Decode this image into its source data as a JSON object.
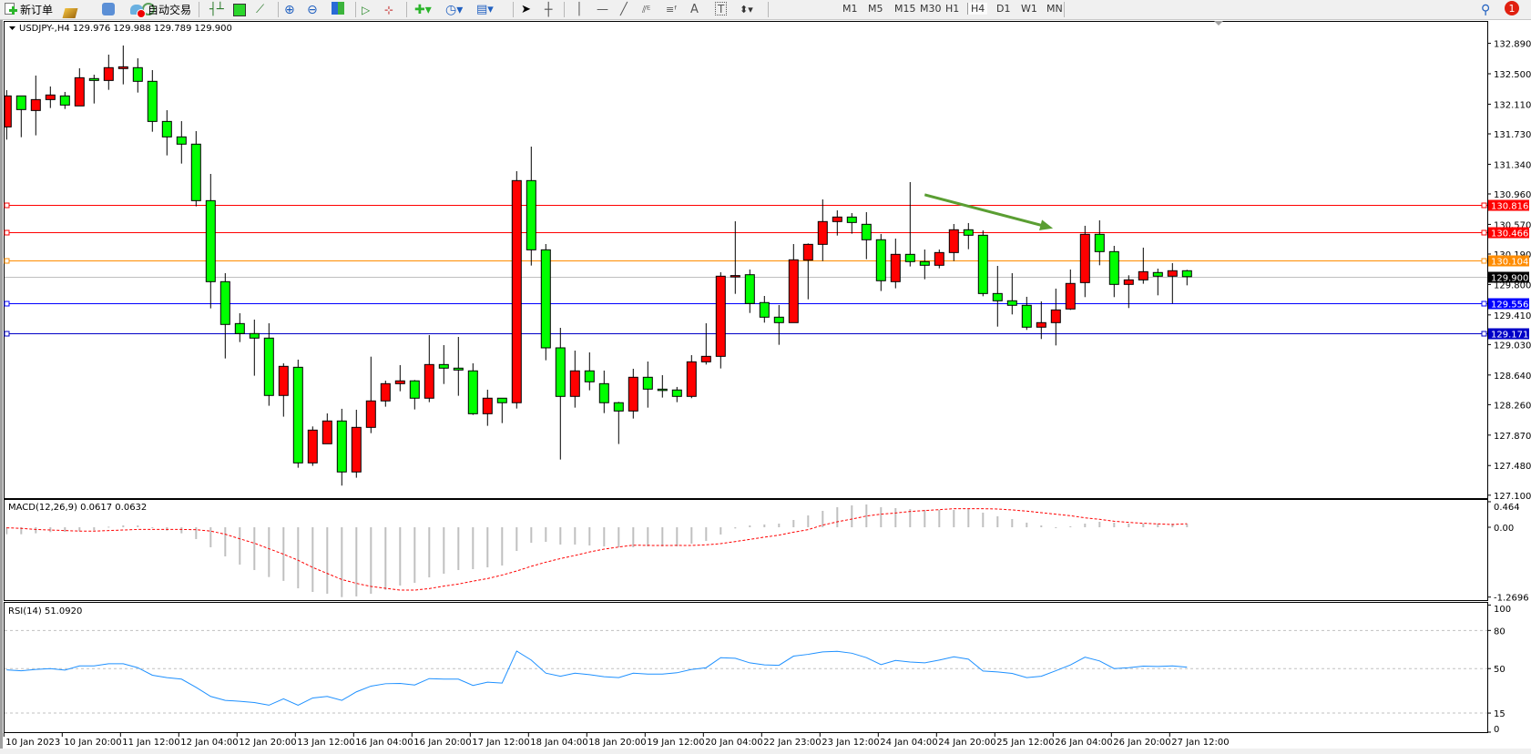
{
  "toolbar": {
    "new_order_label": "新订单",
    "auto_trading_label": "自动交易",
    "timeframes": [
      "M1",
      "M5",
      "M15",
      "M30",
      "H1",
      "H4",
      "D1",
      "W1",
      "MN"
    ],
    "active_timeframe": "H4",
    "notification_count": "1",
    "icons": [
      "new-order-icon",
      "history-icon",
      "market-watch-icon",
      "signals-icon",
      "auto-trading-icon",
      "bar-chart-icon",
      "candlestick-icon",
      "line-chart-icon",
      "zoom-in-icon",
      "zoom-out-icon",
      "tile-windows-icon",
      "autoscroll-icon",
      "chart-shift-icon",
      "new-indicator-icon",
      "periods-clock-icon",
      "templates-icon",
      "cursor-icon",
      "crosshair-icon",
      "vertical-line-icon",
      "horizontal-line-icon",
      "trendline-icon",
      "equidistant-channel-icon",
      "fibonacci-icon",
      "text-icon",
      "text-label-icon",
      "arrows-icon",
      "search-icon",
      "notifications-icon"
    ]
  },
  "chart": {
    "header": "USDJPY-,H4  129.976 129.988 129.789 129.900",
    "colors": {
      "bull": "#ff0000",
      "bear": "#00ff00",
      "outline": "#000000",
      "arrow": "#5a9e32"
    }
  },
  "chart_data": [
    {
      "type": "candlestick",
      "symbol": "USDJPY-",
      "timeframe": "H4",
      "ylim": [
        127.051,
        133.165
      ],
      "y_ticks": [
        "132.890",
        "132.500",
        "132.110",
        "131.730",
        "131.340",
        "130.960",
        "130.570",
        "130.190",
        "129.800",
        "129.410",
        "129.030",
        "128.640",
        "128.260",
        "127.870",
        "127.480",
        "127.100"
      ],
      "x_tick_labels": [
        "10 Jan 2023",
        "10 Jan 20:00",
        "11 Jan 12:00",
        "12 Jan 04:00",
        "12 Jan 20:00",
        "13 Jan 12:00",
        "16 Jan 04:00",
        "16 Jan 20:00",
        "17 Jan 12:00",
        "18 Jan 04:00",
        "18 Jan 20:00",
        "19 Jan 12:00",
        "20 Jan 04:00",
        "22 Jan 23:00",
        "23 Jan 12:00",
        "24 Jan 04:00",
        "24 Jan 20:00",
        "25 Jan 12:00",
        "26 Jan 04:00",
        "26 Jan 20:00",
        "27 Jan 12:00"
      ],
      "ohlc": [
        [
          131.819,
          132.29,
          131.656,
          132.216
        ],
        [
          132.216,
          132.216,
          131.687,
          132.041
        ],
        [
          132.029,
          132.477,
          131.711,
          132.169
        ],
        [
          132.169,
          132.337,
          132.061,
          132.228
        ],
        [
          132.216,
          132.267,
          132.049,
          132.099
        ],
        [
          132.088,
          132.57,
          132.088,
          132.449
        ],
        [
          132.438,
          132.488,
          132.119,
          132.414
        ],
        [
          132.414,
          132.745,
          132.294,
          132.578
        ],
        [
          132.566,
          132.862,
          132.364,
          132.589
        ],
        [
          132.578,
          132.698,
          132.259,
          132.403
        ],
        [
          132.403,
          132.547,
          131.757,
          131.889
        ],
        [
          131.889,
          132.033,
          131.454,
          131.691
        ],
        [
          131.691,
          131.893,
          131.349,
          131.598
        ],
        [
          131.598,
          131.765,
          130.801,
          130.874
        ],
        [
          130.874,
          131.217,
          129.494,
          129.836
        ],
        [
          129.836,
          129.945,
          128.852,
          129.288
        ],
        [
          129.299,
          129.432,
          129.062,
          129.171
        ],
        [
          129.171,
          129.35,
          128.631,
          129.113
        ],
        [
          129.113,
          129.303,
          128.246,
          128.378
        ],
        [
          128.378,
          128.79,
          128.106,
          128.751
        ],
        [
          128.739,
          128.837,
          127.452,
          127.514
        ],
        [
          127.514,
          127.981,
          127.476,
          127.934
        ],
        [
          127.759,
          128.148,
          127.759,
          128.051
        ],
        [
          128.051,
          128.207,
          127.223,
          127.398
        ],
        [
          127.398,
          128.195,
          127.324,
          127.969
        ],
        [
          127.969,
          128.875,
          127.895,
          128.308
        ],
        [
          128.308,
          128.568,
          128.234,
          128.529
        ],
        [
          128.529,
          128.767,
          128.432,
          128.565
        ],
        [
          128.565,
          128.576,
          128.199,
          128.343
        ],
        [
          128.343,
          129.152,
          128.292,
          128.774
        ],
        [
          128.774,
          129.023,
          128.525,
          128.728
        ],
        [
          128.728,
          129.128,
          128.374,
          128.704
        ],
        [
          128.693,
          128.79,
          128.129,
          128.144
        ],
        [
          128.144,
          128.452,
          127.989,
          128.343
        ],
        [
          128.343,
          128.343,
          128.024,
          128.285
        ],
        [
          128.285,
          131.252,
          128.211,
          131.131
        ],
        [
          131.131,
          131.567,
          130.042,
          130.244
        ],
        [
          130.244,
          130.318,
          128.829,
          128.988
        ],
        [
          128.988,
          129.245,
          127.557,
          128.366
        ],
        [
          128.366,
          128.953,
          128.222,
          128.693
        ],
        [
          128.693,
          128.93,
          128.444,
          128.553
        ],
        [
          128.529,
          128.697,
          128.152,
          128.285
        ],
        [
          128.285,
          128.296,
          127.756,
          128.179
        ],
        [
          128.179,
          128.72,
          128.082,
          128.611
        ],
        [
          128.611,
          128.813,
          128.222,
          128.459
        ],
        [
          128.459,
          128.638,
          128.351,
          128.452
        ],
        [
          128.448,
          128.487,
          128.292,
          128.366
        ],
        [
          128.366,
          128.895,
          128.343,
          128.809
        ],
        [
          128.809,
          129.303,
          128.774,
          128.879
        ],
        [
          128.879,
          129.957,
          128.724,
          129.906
        ],
        [
          129.906,
          130.61,
          129.68,
          129.914
        ],
        [
          129.925,
          129.992,
          129.435,
          129.556
        ],
        [
          129.568,
          129.653,
          129.311,
          129.381
        ],
        [
          129.381,
          129.537,
          129.027,
          129.311
        ],
        [
          129.311,
          130.318,
          129.311,
          130.116
        ],
        [
          130.112,
          130.326,
          129.61,
          130.314
        ],
        [
          130.314,
          130.89,
          130.1,
          130.606
        ],
        [
          130.606,
          130.75,
          130.427,
          130.664
        ],
        [
          130.664,
          130.715,
          130.451,
          130.594
        ],
        [
          130.571,
          130.727,
          130.124,
          130.373
        ],
        [
          130.373,
          130.447,
          129.716,
          129.848
        ],
        [
          129.836,
          130.388,
          129.751,
          130.186
        ],
        [
          130.186,
          131.112,
          130.031,
          130.093
        ],
        [
          130.093,
          130.248,
          129.867,
          130.046
        ],
        [
          130.046,
          130.248,
          130.007,
          130.209
        ],
        [
          130.209,
          130.575,
          130.1,
          130.501
        ],
        [
          130.501,
          130.587,
          130.252,
          130.431
        ],
        [
          130.431,
          130.493,
          129.649,
          129.684
        ],
        [
          129.684,
          130.038,
          129.26,
          129.591
        ],
        [
          129.591,
          129.945,
          129.416,
          129.533
        ],
        [
          129.533,
          129.642,
          129.218,
          129.253
        ],
        [
          129.253,
          129.583,
          129.101,
          129.311
        ],
        [
          129.311,
          129.747,
          129.019,
          129.474
        ],
        [
          129.486,
          129.992,
          129.474,
          129.813
        ],
        [
          129.824,
          130.552,
          129.638,
          130.443
        ],
        [
          130.443,
          130.622,
          130.046,
          130.221
        ],
        [
          130.221,
          130.295,
          129.638,
          129.801
        ],
        [
          129.801,
          129.918,
          129.498,
          129.859
        ],
        [
          129.859,
          130.272,
          129.809,
          129.964
        ],
        [
          129.953,
          130.003,
          129.661,
          129.906
        ],
        [
          129.906,
          130.073,
          129.556,
          129.976
        ],
        [
          129.976,
          129.988,
          129.789,
          129.9
        ]
      ],
      "levels": [
        {
          "price": "130.816",
          "color": "#ff0000",
          "tag_bg": "#ff0000"
        },
        {
          "price": "130.466",
          "color": "#ff0000",
          "tag_bg": "#ff0000"
        },
        {
          "price": "130.104",
          "color": "#ff8c00",
          "tag_bg": "#ff8c00"
        },
        {
          "price": "129.900",
          "color": "#c0c0c0",
          "tag_bg": "#000000"
        },
        {
          "price": "129.556",
          "color": "#0000ff",
          "tag_bg": "#0000ff"
        },
        {
          "price": "129.171",
          "color": "#0000c8",
          "tag_bg": "#0000c8"
        }
      ],
      "annotation_arrow": {
        "from": [
          63,
          130.95
        ],
        "to": [
          71.8,
          130.52
        ],
        "color": "#5a9e32"
      }
    },
    {
      "type": "bar+line",
      "label": "MACD(12,26,9) 0.0617 0.0632",
      "ylim": [
        -1.341,
        0.513
      ],
      "y_ticks": [
        "0.464",
        "0.00",
        "-1.2696"
      ],
      "histogram": [
        -0.127,
        -0.127,
        -0.11,
        -0.088,
        -0.083,
        -0.072,
        -0.055,
        0.01,
        0.035,
        0.033,
        -0.01,
        -0.061,
        -0.11,
        -0.215,
        -0.364,
        -0.53,
        -0.679,
        -0.778,
        -0.905,
        -0.975,
        -1.11,
        -1.176,
        -1.209,
        -1.27,
        -1.257,
        -1.209,
        -1.137,
        -1.06,
        -1.01,
        -0.911,
        -0.845,
        -0.778,
        -0.762,
        -0.729,
        -0.696,
        -0.431,
        -0.282,
        -0.265,
        -0.315,
        -0.315,
        -0.331,
        -0.348,
        -0.364,
        -0.364,
        -0.348,
        -0.348,
        -0.348,
        -0.298,
        -0.248,
        -0.132,
        -0.022,
        0.033,
        0.05,
        0.066,
        0.132,
        0.215,
        0.298,
        0.364,
        0.397,
        0.414,
        0.364,
        0.348,
        0.331,
        0.315,
        0.315,
        0.315,
        0.331,
        0.265,
        0.199,
        0.149,
        0.083,
        0.033,
        -0.01,
        0.017,
        0.066,
        0.099,
        0.083,
        0.066,
        0.066,
        0.066,
        0.066,
        0.0617
      ],
      "signal": [
        -0.01,
        -0.02,
        -0.04,
        -0.05,
        -0.06,
        -0.07,
        -0.07,
        -0.06,
        -0.05,
        -0.04,
        -0.04,
        -0.04,
        -0.04,
        -0.044,
        -0.07,
        -0.127,
        -0.21,
        -0.29,
        -0.39,
        -0.49,
        -0.6,
        -0.73,
        -0.84,
        -0.95,
        -1.02,
        -1.076,
        -1.11,
        -1.143,
        -1.143,
        -1.115,
        -1.07,
        -1.032,
        -0.98,
        -0.933,
        -0.87,
        -0.795,
        -0.71,
        -0.635,
        -0.57,
        -0.513,
        -0.45,
        -0.397,
        -0.36,
        -0.326,
        -0.33,
        -0.331,
        -0.33,
        -0.331,
        -0.32,
        -0.298,
        -0.26,
        -0.221,
        -0.18,
        -0.144,
        -0.09,
        -0.044,
        0.039,
        0.099,
        0.149,
        0.204,
        0.237,
        0.259,
        0.287,
        0.304,
        0.32,
        0.337,
        0.337,
        0.337,
        0.331,
        0.315,
        0.293,
        0.265,
        0.237,
        0.21,
        0.171,
        0.144,
        0.11,
        0.088,
        0.072,
        0.061,
        0.05,
        0.0632
      ],
      "colors": {
        "histogram": "#c0c0c0",
        "signal": "#ff0000"
      }
    },
    {
      "type": "line",
      "label": "RSI(14) 51.0920",
      "ylim": [
        0,
        100
      ],
      "y_ticks": [
        "100",
        "80",
        "50",
        "15",
        "0"
      ],
      "levels": [
        80,
        50,
        15
      ],
      "values": [
        49.0,
        48.3,
        49.3,
        50,
        48.8,
        52.1,
        52.1,
        53.8,
        53.8,
        50.7,
        44.8,
        42.9,
        41.7,
        35.2,
        28.1,
        25,
        24.3,
        23.3,
        21.2,
        26.2,
        21.2,
        26.9,
        28.1,
        25,
        31.7,
        36.2,
        38.1,
        38.3,
        37.1,
        42.1,
        41.7,
        41.7,
        36.7,
        39.3,
        38.6,
        63.8,
        56.7,
        46.4,
        44,
        46.4,
        45.2,
        43.6,
        42.9,
        46.4,
        45.7,
        45.7,
        46.7,
        49.3,
        50.7,
        58.6,
        58.1,
        54.5,
        52.9,
        52.6,
        59.8,
        61.2,
        63.1,
        63.6,
        62.1,
        58.6,
        53.1,
        56.4,
        55.2,
        54.5,
        56.7,
        59.3,
        57.4,
        48.1,
        47.4,
        46.2,
        42.9,
        44,
        48.3,
        52.9,
        59,
        56,
        50,
        50.7,
        51.9,
        51.7,
        52.1,
        51.09
      ],
      "color": "#1e90ff"
    }
  ]
}
